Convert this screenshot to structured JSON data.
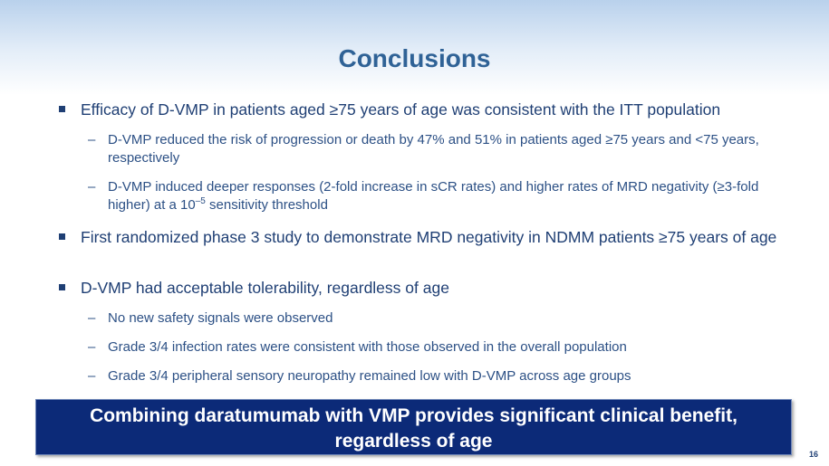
{
  "slide": {
    "title": "Conclusions",
    "bullets": [
      {
        "text": "Efficacy of D-VMP in patients aged ≥75 years of age was consistent with the ITT population",
        "sub": [
          "D-VMP reduced the risk of progression or death by 47% and 51% in patients aged ≥75 years and <75 years, respectively",
          "D-VMP induced deeper responses (2-fold increase in sCR rates) and higher rates of MRD negativity (≥3-fold higher) at a 10",
          "–5",
          " sensitivity threshold"
        ]
      },
      {
        "text": "First randomized phase 3 study to demonstrate MRD negativity in NDMM patients ≥75 years of age"
      },
      {
        "text": "D-VMP had acceptable tolerability, regardless of age",
        "sub": [
          "No new safety signals were observed",
          "Grade 3/4 infection rates were consistent with those observed in the overall population",
          "Grade 3/4 peripheral sensory neuropathy remained low with D-VMP across age groups"
        ]
      }
    ],
    "banner_line1": "Combining daratumumab with VMP provides significant clinical benefit,",
    "banner_line2": "regardless of age",
    "page_number": "16",
    "sub_marker": "–"
  }
}
